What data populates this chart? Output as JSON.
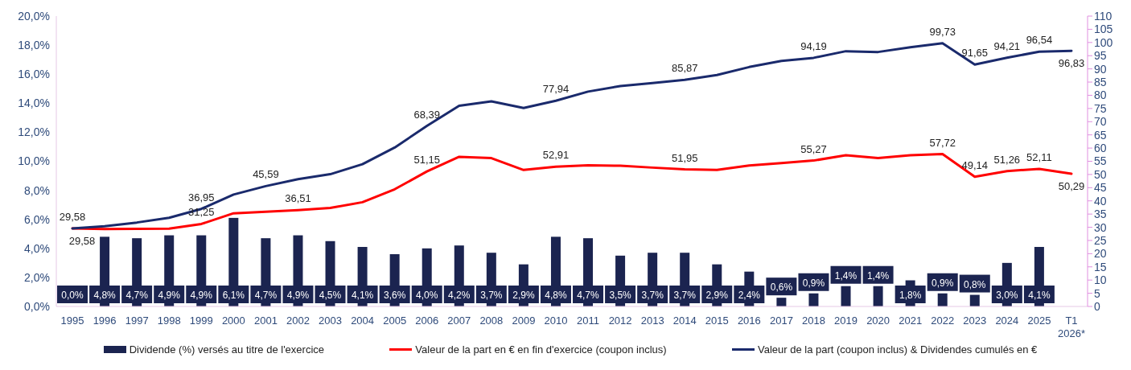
{
  "chart_data": {
    "type": "bar",
    "categories": [
      "1995",
      "1996",
      "1997",
      "1998",
      "1999",
      "2000",
      "2001",
      "2002",
      "2003",
      "2004",
      "2005",
      "2006",
      "2007",
      "2008",
      "2009",
      "2010",
      "2011",
      "2012",
      "2013",
      "2014",
      "2015",
      "2016",
      "2017",
      "2018",
      "2019",
      "2020",
      "2021",
      "2022",
      "2023",
      "2024",
      "2025",
      "T1\n2026*"
    ],
    "series": [
      {
        "name": "Dividende (%) versés au titre de l'exercice",
        "type": "bar",
        "color": "#1b2450",
        "values": [
          0,
          4.8,
          4.7,
          4.9,
          4.9,
          6.1,
          4.7,
          4.9,
          4.5,
          4.1,
          3.6,
          4.0,
          4.2,
          3.7,
          2.9,
          4.8,
          4.7,
          3.5,
          3.7,
          3.7,
          2.9,
          2.4,
          0.6,
          0.9,
          1.4,
          1.4,
          1.8,
          0.9,
          0.8,
          3.0,
          4.1,
          null
        ],
        "value_labels": [
          "0,0%",
          "4,8%",
          "4,7%",
          "4,9%",
          "4,9%",
          "6,1%",
          "4,7%",
          "4,9%",
          "4,5%",
          "4,1%",
          "3,6%",
          "4,0%",
          "4,2%",
          "3,7%",
          "2,9%",
          "4,8%",
          "4,7%",
          "3,5%",
          "3,7%",
          "3,7%",
          "2,9%",
          "2,4%",
          "0,6%",
          "0,9%",
          "1,4%",
          "1,4%",
          "1,8%",
          "0,9%",
          "0,8%",
          "3,0%",
          "4,1%",
          null
        ]
      },
      {
        "name": "Valeur de la part en € en fin d'exercice (coupon inclus)",
        "type": "line",
        "axis": "y2",
        "color": "#ff0000",
        "values": [
          29.58,
          29.3,
          29.4,
          29.5,
          31.25,
          35.3,
          35.9,
          36.51,
          37.3,
          39.5,
          44.4,
          51.15,
          56.7,
          56.2,
          51.7,
          52.91,
          53.5,
          53.3,
          52.6,
          51.95,
          51.7,
          53.4,
          54.3,
          55.27,
          57.3,
          56.2,
          57.3,
          57.72,
          49.14,
          51.26,
          52.11,
          50.29
        ],
        "value_labels": [
          "29,58",
          null,
          null,
          null,
          "31,25",
          null,
          null,
          "36,51",
          null,
          null,
          null,
          "51,15",
          null,
          null,
          null,
          "52,91",
          null,
          null,
          null,
          "51,95",
          null,
          null,
          null,
          "55,27",
          null,
          null,
          null,
          "57,72",
          "49,14",
          "51,26",
          "52,11",
          "50,29"
        ]
      },
      {
        "name": "Valeur de la part (coupon inclus) & Dividendes cumulés en €",
        "type": "line",
        "axis": "y2",
        "color": "#1a2a6c",
        "values": [
          29.58,
          30.4,
          31.8,
          33.6,
          36.95,
          42.4,
          45.59,
          48.2,
          50.1,
          53.9,
          60.2,
          68.39,
          76.0,
          77.7,
          75.2,
          77.94,
          81.4,
          83.5,
          84.6,
          85.87,
          87.7,
          90.7,
          93.0,
          94.19,
          96.7,
          96.4,
          98.2,
          99.73,
          91.65,
          94.21,
          96.54,
          96.83
        ],
        "value_labels": [
          "29,58",
          null,
          null,
          null,
          "36,95",
          null,
          "45,59",
          null,
          null,
          null,
          null,
          "68,39",
          null,
          null,
          null,
          "77,94",
          null,
          null,
          null,
          "85,87",
          null,
          null,
          null,
          "94,19",
          null,
          null,
          null,
          "99,73",
          "91,65",
          "94,21",
          "96,54",
          "96,83"
        ]
      }
    ],
    "ylim": [
      0,
      20
    ],
    "yticks": [
      {
        "value": 0,
        "label": "0,0%"
      },
      {
        "value": 2,
        "label": "2,0%"
      },
      {
        "value": 4,
        "label": "4,0%"
      },
      {
        "value": 6,
        "label": "6,0%"
      },
      {
        "value": 8,
        "label": "8,0%"
      },
      {
        "value": 10,
        "label": "10,0%"
      },
      {
        "value": 12,
        "label": "12,0%"
      },
      {
        "value": 14,
        "label": "14,0%"
      },
      {
        "value": 16,
        "label": "16,0%"
      },
      {
        "value": 18,
        "label": "18,0%"
      },
      {
        "value": 20,
        "label": "20,0%"
      }
    ],
    "y2lim": [
      0,
      110
    ],
    "y2ticks": [
      0,
      5,
      10,
      15,
      20,
      25,
      30,
      35,
      40,
      45,
      50,
      55,
      60,
      65,
      70,
      75,
      80,
      85,
      90,
      95,
      100,
      105,
      110
    ],
    "grid": false,
    "legend": "bottom",
    "line_style": "solid",
    "marker": "none"
  }
}
